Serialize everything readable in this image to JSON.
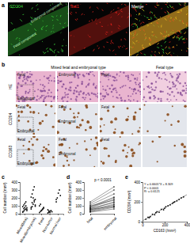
{
  "figure": {
    "panel_labels": [
      "a",
      "b",
      "c",
      "d",
      "e"
    ],
    "panel_a": {
      "images": [
        "CD204",
        "Iba1",
        "Merge"
      ],
      "components": [
        "Fetal component",
        "Embryonal component"
      ]
    },
    "panel_b": {
      "headers": [
        "Mixed fetal and embryonal type",
        "Fetal type"
      ],
      "rows": [
        {
          "label": "HE",
          "tiles": [
            [
              "Fetal",
              "Embryonal"
            ],
            [
              "Embryonal"
            ],
            [
              "Fetal"
            ],
            []
          ]
        },
        {
          "label": "CD204",
          "tiles": [
            [
              "Fetal",
              "Embryonal"
            ],
            [
              "Fetal",
              "Embryonal"
            ],
            [
              "Fetal"
            ],
            []
          ]
        },
        {
          "label": "CD163",
          "tiles": [
            [
              "Fetal",
              "Embryonal"
            ],
            [
              "Fetal",
              "Embryonal"
            ],
            [
              "Fetal"
            ],
            []
          ]
        }
      ]
    }
  },
  "chart_data": [
    {
      "type": "dot",
      "y_label": "Cell number (/mm²)",
      "categories": [
        "Mixed(fetal)",
        "Mixed(embryonal)",
        "Fetal",
        "Non-tumor",
        "Normal liver"
      ],
      "values": [
        [
          20,
          35,
          50,
          60,
          75,
          90,
          110,
          130,
          150,
          40,
          25,
          65,
          80,
          100,
          55
        ],
        [
          60,
          90,
          120,
          150,
          180,
          210,
          250,
          300,
          340,
          110,
          80,
          140,
          200,
          170,
          95
        ],
        [
          15,
          30,
          45,
          60,
          80,
          100,
          120,
          40,
          55,
          70
        ],
        [
          10,
          20,
          30,
          40,
          25,
          50,
          35,
          15
        ],
        [
          150,
          200,
          260,
          300,
          230,
          180
        ]
      ],
      "color": "#111111",
      "ylim": [
        0,
        400
      ],
      "yticks": [
        0,
        100,
        200,
        300,
        400
      ]
    },
    {
      "type": "paired",
      "y_label": "Cell number (/mm²)",
      "categories": [
        "fetal",
        "embryonal"
      ],
      "values": [
        [
          20,
          60
        ],
        [
          35,
          90
        ],
        [
          50,
          120
        ],
        [
          60,
          150
        ],
        [
          75,
          180
        ],
        [
          90,
          210
        ],
        [
          110,
          250
        ],
        [
          130,
          300
        ],
        [
          150,
          340
        ],
        [
          40,
          110
        ],
        [
          25,
          80
        ],
        [
          65,
          140
        ],
        [
          80,
          200
        ],
        [
          100,
          170
        ],
        [
          55,
          95
        ]
      ],
      "color": "#111111",
      "annotations": [
        "p < 0.0001"
      ],
      "ylim": [
        0,
        400
      ],
      "yticks": [
        0,
        100,
        200,
        300,
        400
      ]
    },
    {
      "type": "scatter",
      "x_label": "CD163 (/mm²)",
      "y_label": "CD204 (/mm²)",
      "x": [
        30,
        50,
        70,
        90,
        110,
        130,
        150,
        170,
        190,
        210,
        230,
        250,
        270,
        290,
        310,
        330,
        350,
        370,
        60,
        120,
        200,
        280
      ],
      "values": [
        25,
        45,
        50,
        75,
        70,
        100,
        95,
        125,
        120,
        150,
        160,
        170,
        185,
        200,
        210,
        225,
        240,
        250,
        40,
        90,
        135,
        195
      ],
      "color": "#111111",
      "fit": {
        "slope": 0.6605,
        "intercept": 8.309
      },
      "annotations": [
        "Y = 0.6605*X + 8.309",
        "P < 0.0001",
        "R² = 0.6121"
      ],
      "xlim": [
        0,
        400
      ],
      "xticks": [
        0,
        200,
        400
      ],
      "ylim": [
        0,
        400
      ],
      "yticks": [
        0,
        200,
        400
      ]
    }
  ]
}
